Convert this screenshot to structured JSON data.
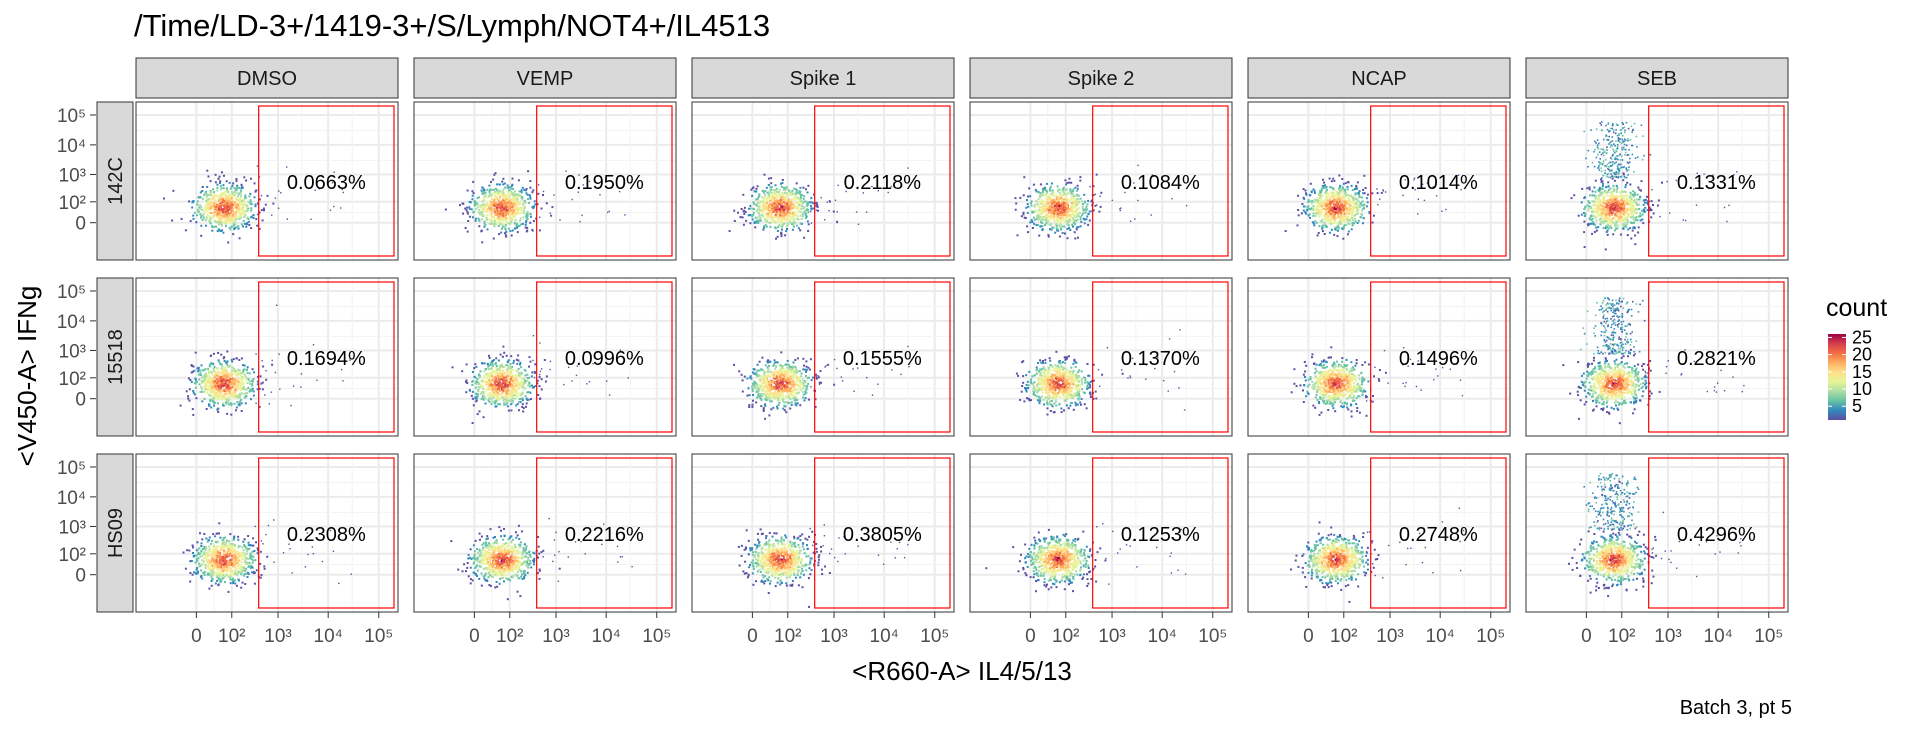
{
  "chart_data": {
    "type": "scatter",
    "title": "/Time/LD-3+/1419-3+/S/Lymph/NOT4+/IL4513",
    "xlabel": "<R660-A> IL4/5/13",
    "ylabel": "<V450-A> IFNg",
    "caption": "Batch 3, pt 5",
    "columns": [
      "DMSO",
      "VEMP",
      "Spike 1",
      "Spike 2",
      "NCAP",
      "SEB"
    ],
    "rows": [
      "142C",
      "15518",
      "HS09"
    ],
    "gate_percentages": [
      [
        "0.0663%",
        "0.1950%",
        "0.2118%",
        "0.1084%",
        "0.1014%",
        "0.1331%"
      ],
      [
        "0.1694%",
        "0.0996%",
        "0.1555%",
        "0.1370%",
        "0.1496%",
        "0.2821%"
      ],
      [
        "0.2308%",
        "0.2216%",
        "0.3805%",
        "0.1253%",
        "0.2748%",
        "0.4296%"
      ]
    ],
    "x_ticks": [
      {
        "label": "0",
        "value": 0
      },
      {
        "label": "10²",
        "value": 100
      },
      {
        "label": "10³",
        "value": 1000
      },
      {
        "label": "10⁴",
        "value": 10000
      },
      {
        "label": "10⁵",
        "value": 100000
      }
    ],
    "y_ticks": [
      {
        "label": "0",
        "value": 0
      },
      {
        "label": "10²",
        "value": 100
      },
      {
        "label": "10³",
        "value": 1000
      },
      {
        "label": "10⁴",
        "value": 10000
      },
      {
        "label": "10⁵",
        "value": 100000
      }
    ],
    "gate": {
      "x_min": 400,
      "x_max": 200000,
      "y_min": -300,
      "y_max": 200000
    },
    "legend": {
      "title": "count",
      "position": "right",
      "ticks": [
        5,
        10,
        15,
        20,
        25
      ],
      "tick_labels": [
        "5",
        "10",
        "15",
        "20",
        "25"
      ],
      "colors": [
        "#5e4fa2",
        "#3288bd",
        "#66c2a5",
        "#abdda4",
        "#e6f598",
        "#fee08b",
        "#fdae61",
        "#f46d43",
        "#d53e4f",
        "#9e0142"
      ]
    },
    "grid": true,
    "strip_fill": "#d9d9d9",
    "gate_color": "#ff0000"
  }
}
